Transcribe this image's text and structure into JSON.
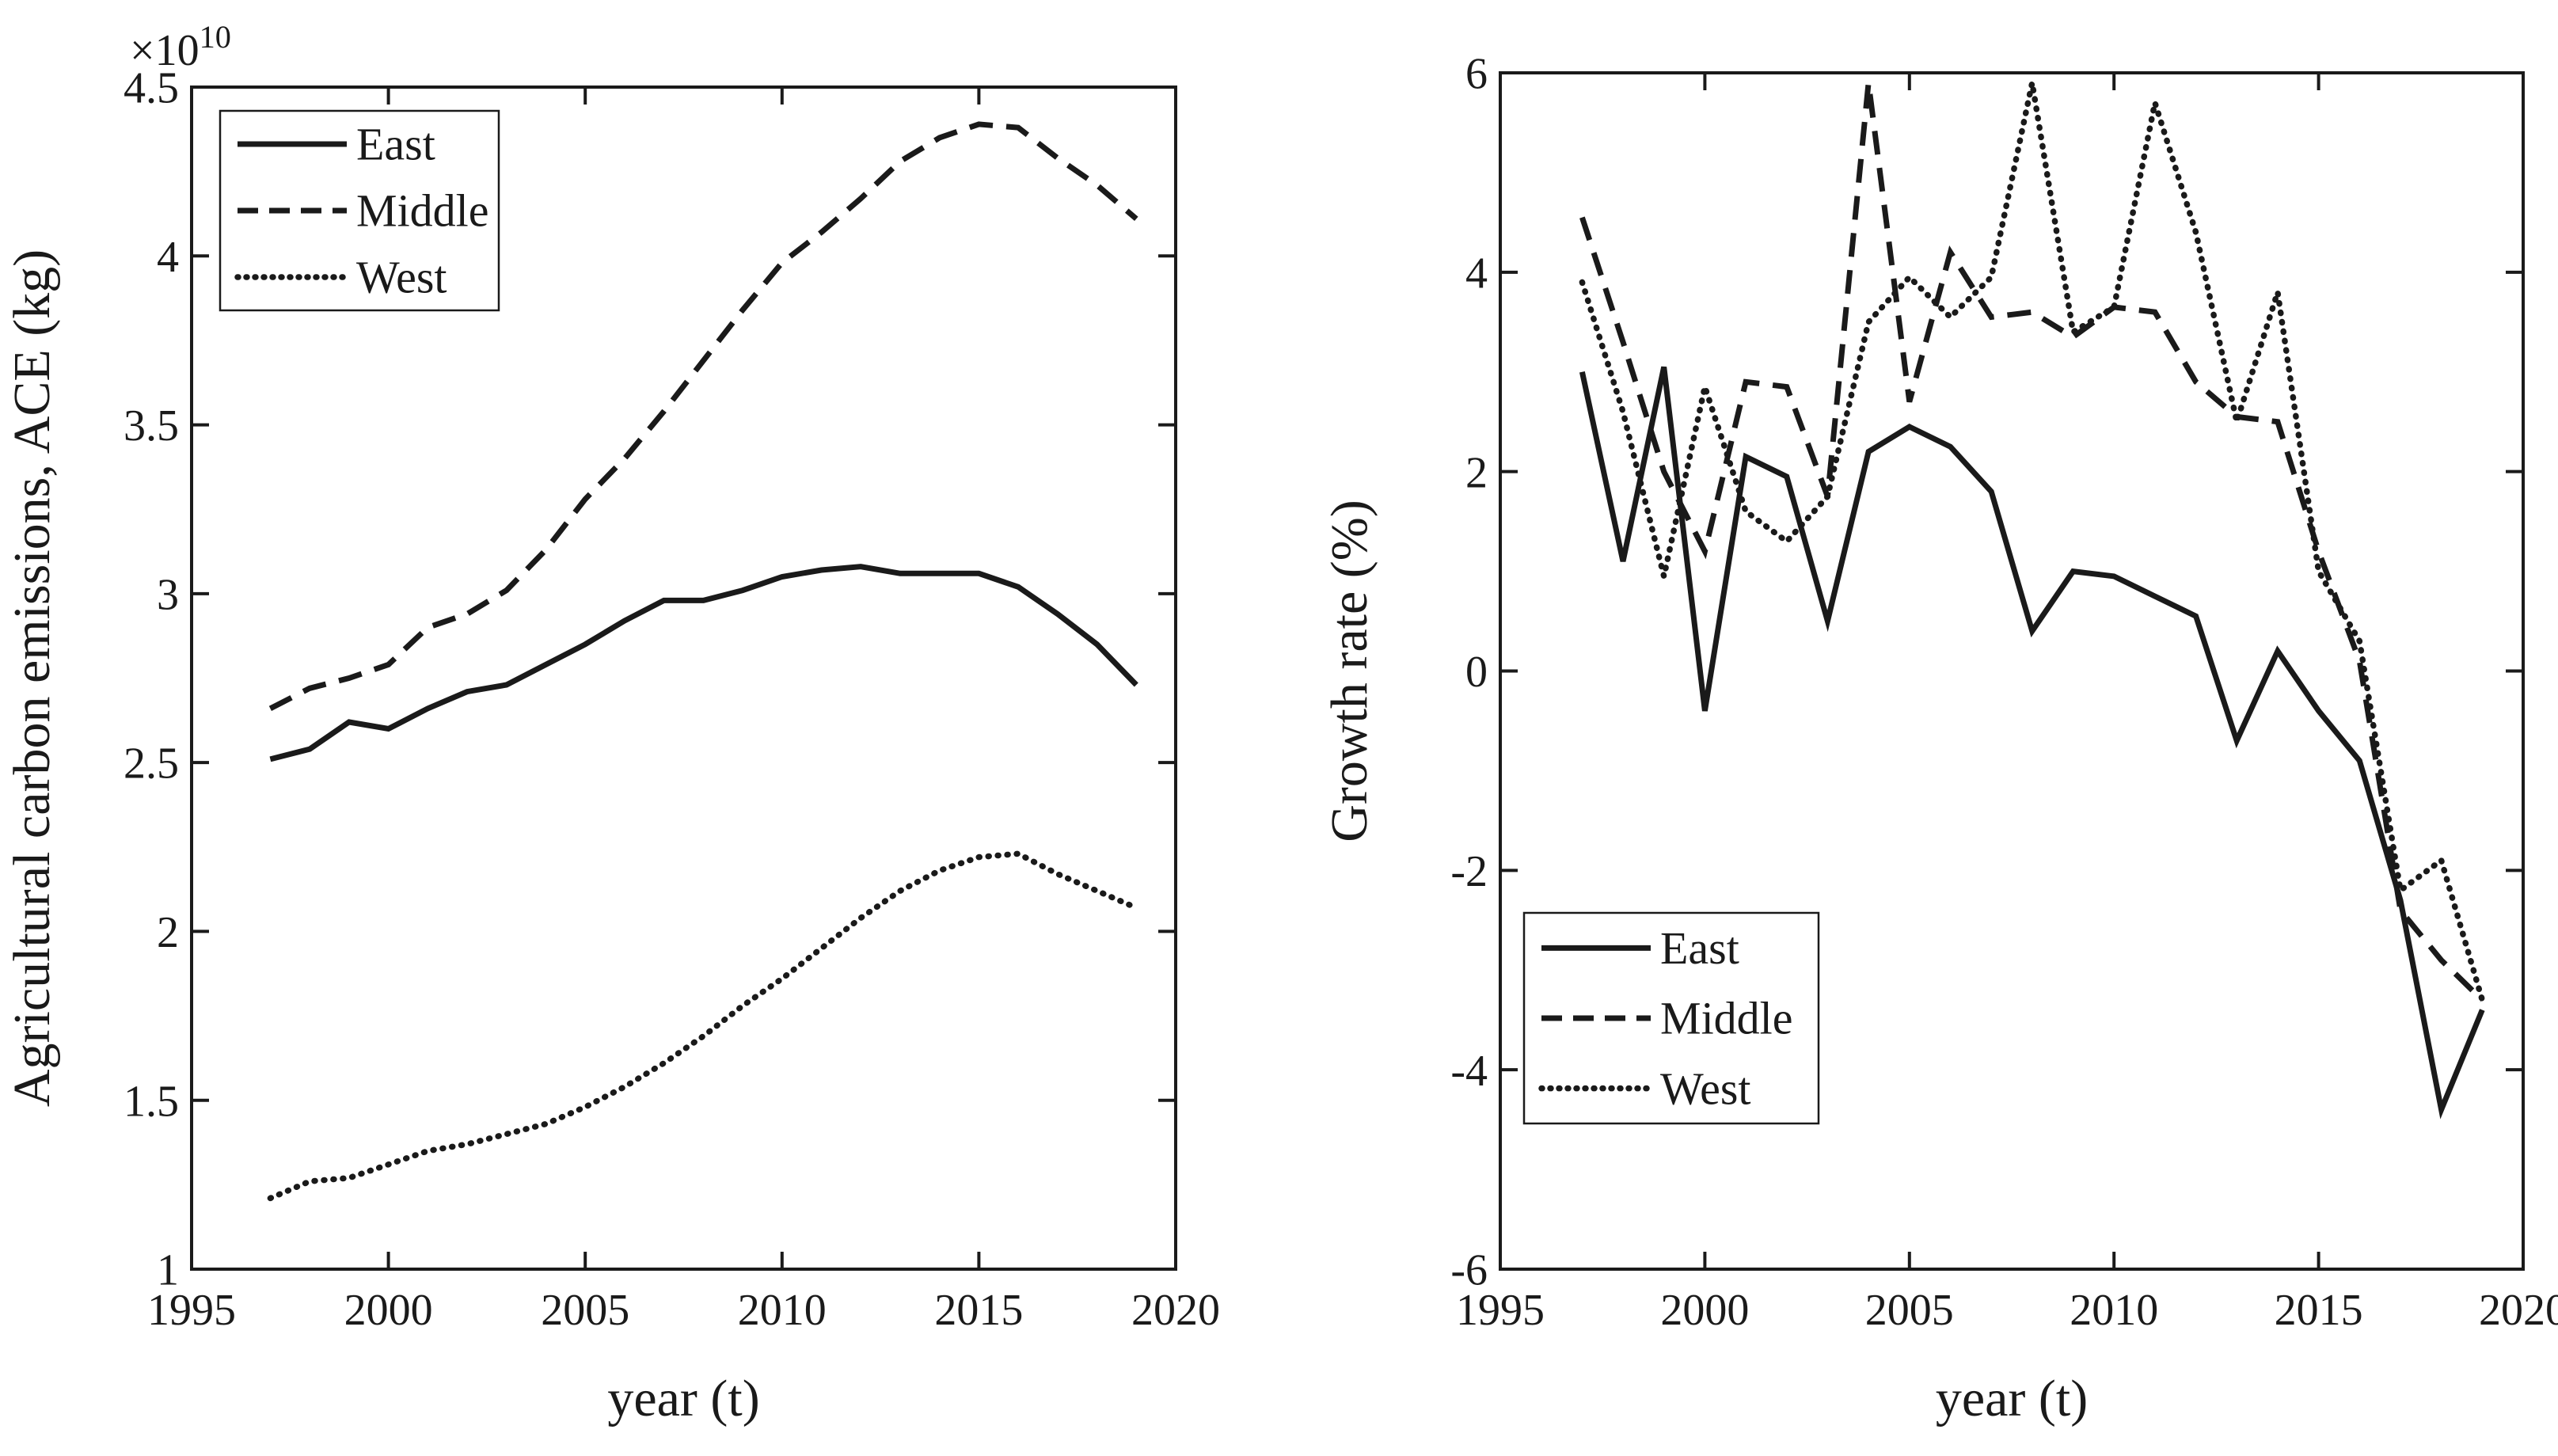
{
  "page": {
    "background": "#ffffff",
    "ink": "#1a1a1a"
  },
  "chart_data": [
    {
      "type": "line",
      "panel": "left",
      "title": "",
      "xlabel": "year (t)",
      "ylabel": "Agricultural carbon emissions, ACE (kg)",
      "offset_text": "×10",
      "offset_exponent": "10",
      "xlim": [
        1995,
        2020
      ],
      "ylim": [
        1.0,
        4.5
      ],
      "xticks": [
        1995,
        2000,
        2005,
        2010,
        2015,
        2020
      ],
      "xtick_labels": [
        "1995",
        "2000",
        "2005",
        "2010",
        "2015",
        "2020"
      ],
      "yticks": [
        1.0,
        1.5,
        2.0,
        2.5,
        3.0,
        3.5,
        4.0,
        4.5
      ],
      "ytick_labels": [
        "1",
        "1.5",
        "2",
        "2.5",
        "3",
        "3.5",
        "4",
        "4.5"
      ],
      "grid": false,
      "legend_position": "top-left",
      "x": [
        1997,
        1998,
        1999,
        2000,
        2001,
        2002,
        2003,
        2004,
        2005,
        2006,
        2007,
        2008,
        2009,
        2010,
        2011,
        2012,
        2013,
        2014,
        2015,
        2016,
        2017,
        2018,
        2019
      ],
      "series": [
        {
          "name": "East",
          "linestyle": "solid",
          "values": [
            2.51,
            2.54,
            2.62,
            2.6,
            2.66,
            2.71,
            2.73,
            2.79,
            2.85,
            2.92,
            2.98,
            2.98,
            3.01,
            3.05,
            3.07,
            3.08,
            3.06,
            3.06,
            3.06,
            3.02,
            2.94,
            2.85,
            2.73
          ]
        },
        {
          "name": "Middle",
          "linestyle": "dashed",
          "values": [
            2.66,
            2.72,
            2.75,
            2.79,
            2.9,
            2.94,
            3.01,
            3.13,
            3.28,
            3.4,
            3.54,
            3.69,
            3.84,
            3.98,
            4.07,
            4.17,
            4.28,
            4.35,
            4.39,
            4.38,
            4.29,
            4.21,
            4.11
          ]
        },
        {
          "name": "West",
          "linestyle": "dotted",
          "values": [
            1.21,
            1.26,
            1.27,
            1.31,
            1.35,
            1.37,
            1.4,
            1.43,
            1.48,
            1.54,
            1.61,
            1.69,
            1.78,
            1.86,
            1.95,
            2.04,
            2.12,
            2.18,
            2.22,
            2.23,
            2.17,
            2.12,
            2.07
          ]
        }
      ]
    },
    {
      "type": "line",
      "panel": "right",
      "title": "",
      "xlabel": "year (t)",
      "ylabel": "Growth rate (%)",
      "offset_text": "",
      "offset_exponent": "",
      "xlim": [
        1995,
        2020
      ],
      "ylim": [
        -6,
        6
      ],
      "xticks": [
        1995,
        2000,
        2005,
        2010,
        2015,
        2020
      ],
      "xtick_labels": [
        "1995",
        "2000",
        "2005",
        "2010",
        "2015",
        "2020"
      ],
      "yticks": [
        -6,
        -4,
        -2,
        0,
        2,
        4,
        6
      ],
      "ytick_labels": [
        "-6",
        "-4",
        "-2",
        "0",
        "2",
        "4",
        "6"
      ],
      "grid": false,
      "legend_position": "bottom-left",
      "x": [
        1997,
        1998,
        1999,
        2000,
        2001,
        2002,
        2003,
        2004,
        2005,
        2006,
        2007,
        2008,
        2009,
        2010,
        2011,
        2012,
        2013,
        2014,
        2015,
        2016,
        2017,
        2018,
        2019
      ],
      "series": [
        {
          "name": "East",
          "linestyle": "solid",
          "values": [
            3.0,
            1.1,
            3.05,
            -0.4,
            2.15,
            1.95,
            0.5,
            2.2,
            2.45,
            2.25,
            1.8,
            0.4,
            1.0,
            0.95,
            0.75,
            0.55,
            -0.7,
            0.2,
            -0.4,
            -0.9,
            -2.3,
            -4.4,
            -3.4
          ]
        },
        {
          "name": "Middle",
          "linestyle": "dashed",
          "values": [
            4.55,
            3.3,
            2.0,
            1.2,
            2.9,
            2.85,
            1.75,
            5.9,
            2.7,
            4.2,
            3.55,
            3.6,
            3.35,
            3.65,
            3.6,
            2.9,
            2.55,
            2.5,
            1.2,
            0.1,
            -2.4,
            -2.9,
            -3.3
          ]
        },
        {
          "name": "West",
          "linestyle": "dotted",
          "values": [
            3.9,
            2.6,
            0.95,
            2.85,
            1.6,
            1.3,
            1.75,
            3.5,
            3.95,
            3.55,
            3.95,
            5.9,
            3.4,
            3.65,
            5.7,
            4.4,
            2.5,
            3.8,
            1.0,
            0.3,
            -2.2,
            -1.9,
            -3.3
          ]
        }
      ]
    }
  ]
}
